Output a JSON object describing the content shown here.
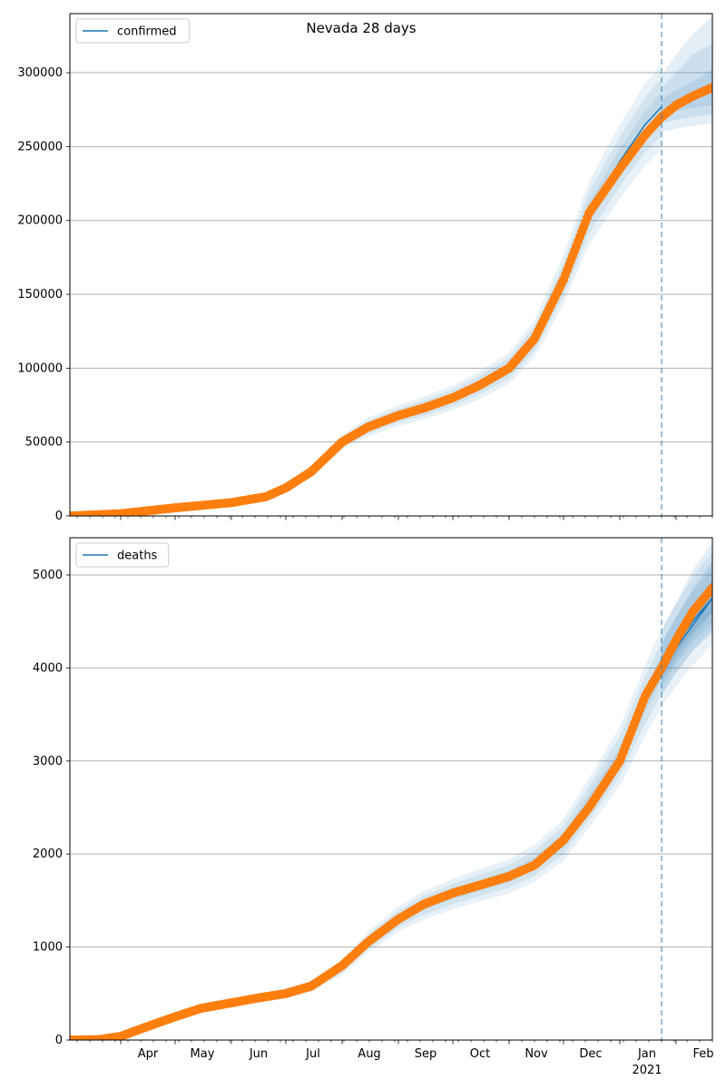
{
  "title": "Nevada 28 days",
  "xaxis": {
    "month_labels": [
      "Apr",
      "May",
      "Jun",
      "Jul",
      "Aug",
      "Sep",
      "Oct",
      "Nov",
      "Dec",
      "Jan",
      "Feb"
    ],
    "year_label": "2021",
    "range": [
      "2020-03-04",
      "2021-02-21"
    ],
    "forecast_start": "2021-01-24"
  },
  "colors": {
    "model_line": "#1f77b4",
    "observed_points": "#ff7f0e",
    "band": "#1f77b4",
    "forecast_marker": "#1f77b4",
    "grid": "#b0b0b0"
  },
  "chart_data": [
    {
      "type": "line",
      "name": "confirmed",
      "legend": "confirmed",
      "legend_position": "upper left",
      "grid": "horizontal",
      "ylim": [
        0,
        340000
      ],
      "yticks": [
        0,
        50000,
        100000,
        150000,
        200000,
        250000,
        300000
      ],
      "ytick_labels": [
        "0",
        "50000",
        "100000",
        "150000",
        "200000",
        "250000",
        "300000"
      ],
      "model_series": {
        "x": [
          "2020-03-04",
          "2020-04-01",
          "2020-05-01",
          "2020-06-01",
          "2020-06-20",
          "2020-07-01",
          "2020-07-15",
          "2020-08-01",
          "2020-08-15",
          "2020-09-01",
          "2020-09-15",
          "2020-10-01",
          "2020-10-15",
          "2020-11-01",
          "2020-11-15",
          "2020-12-01",
          "2020-12-15",
          "2021-01-01",
          "2021-01-15",
          "2021-01-24"
        ],
        "y": [
          0,
          1500,
          5500,
          9000,
          13000,
          19000,
          30000,
          50000,
          60000,
          68000,
          73000,
          80000,
          88000,
          100000,
          120000,
          160000,
          205000,
          240000,
          265000,
          277000
        ]
      },
      "observed": {
        "x": [
          "2020-03-04",
          "2020-04-01",
          "2020-05-01",
          "2020-06-01",
          "2020-06-20",
          "2020-07-01",
          "2020-07-15",
          "2020-08-01",
          "2020-08-15",
          "2020-09-01",
          "2020-09-15",
          "2020-10-01",
          "2020-10-15",
          "2020-11-01",
          "2020-11-15",
          "2020-12-01",
          "2020-12-15",
          "2021-01-01",
          "2021-01-15",
          "2021-01-24",
          "2021-02-01",
          "2021-02-10",
          "2021-02-21"
        ],
        "y": [
          0,
          1500,
          5500,
          9000,
          13000,
          19000,
          30000,
          50000,
          60000,
          68000,
          73000,
          80000,
          88000,
          100000,
          120000,
          160000,
          205000,
          235000,
          258000,
          270000,
          278000,
          284000,
          290000
        ]
      },
      "forecast": {
        "x": [
          "2021-01-24",
          "2021-02-01",
          "2021-02-10",
          "2021-02-21"
        ],
        "median": [
          277000,
          281000,
          285000,
          290000
        ],
        "bands": [
          {
            "lower": [
              272000,
              274000,
              276000,
              278000
            ],
            "upper": [
              282000,
              288000,
              294000,
              302000
            ]
          },
          {
            "lower": [
              266000,
              268000,
              270000,
              272000
            ],
            "upper": [
              290000,
              300000,
              312000,
              320000
            ]
          },
          {
            "lower": [
              260000,
              262000,
              264000,
              266000
            ],
            "upper": [
              298000,
              312000,
              326000,
              338000
            ]
          }
        ]
      }
    },
    {
      "type": "line",
      "name": "deaths",
      "legend": "deaths",
      "legend_position": "upper left",
      "grid": "horizontal",
      "ylim": [
        0,
        5400
      ],
      "yticks": [
        0,
        1000,
        2000,
        3000,
        4000,
        5000
      ],
      "ytick_labels": [
        "0",
        "1000",
        "2000",
        "3000",
        "4000",
        "5000"
      ],
      "model_series": {
        "x": [
          "2020-03-04",
          "2020-03-20",
          "2020-04-01",
          "2020-04-15",
          "2020-05-01",
          "2020-05-15",
          "2020-06-01",
          "2020-06-15",
          "2020-07-01",
          "2020-07-15",
          "2020-08-01",
          "2020-08-15",
          "2020-09-01",
          "2020-09-15",
          "2020-10-01",
          "2020-10-15",
          "2020-11-01",
          "2020-11-15",
          "2020-12-01",
          "2020-12-15",
          "2021-01-01",
          "2021-01-15",
          "2021-01-24",
          "2021-02-01",
          "2021-02-10",
          "2021-02-21"
        ],
        "y": [
          0,
          5,
          30,
          130,
          240,
          330,
          400,
          450,
          500,
          580,
          780,
          1050,
          1300,
          1450,
          1570,
          1660,
          1760,
          1900,
          2150,
          2550,
          3050,
          3650,
          4000,
          4250,
          4500,
          4750
        ]
      },
      "observed": {
        "x": [
          "2020-03-04",
          "2020-03-20",
          "2020-04-01",
          "2020-04-15",
          "2020-05-01",
          "2020-05-15",
          "2020-06-01",
          "2020-06-15",
          "2020-07-01",
          "2020-07-15",
          "2020-08-01",
          "2020-08-15",
          "2020-09-01",
          "2020-09-15",
          "2020-10-01",
          "2020-10-15",
          "2020-11-01",
          "2020-11-15",
          "2020-12-01",
          "2020-12-15",
          "2021-01-01",
          "2021-01-15",
          "2021-01-24",
          "2021-02-01",
          "2021-02-10",
          "2021-02-21"
        ],
        "y": [
          0,
          5,
          40,
          140,
          250,
          340,
          400,
          450,
          500,
          580,
          800,
          1050,
          1300,
          1460,
          1580,
          1660,
          1760,
          1880,
          2150,
          2500,
          3000,
          3700,
          4000,
          4300,
          4600,
          4860
        ]
      },
      "forecast": {
        "x": [
          "2021-01-24",
          "2021-02-01",
          "2021-02-10",
          "2021-02-21"
        ],
        "median": [
          4000,
          4250,
          4500,
          4750
        ],
        "bands": [
          {
            "lower": [
              3900,
              4150,
              4380,
              4600
            ],
            "upper": [
              4100,
              4380,
              4650,
              4950
            ]
          },
          {
            "lower": [
              3800,
              4050,
              4280,
              4480
            ],
            "upper": [
              4250,
              4550,
              4850,
              5150
            ]
          },
          {
            "lower": [
              3700,
              3950,
              4180,
              4380
            ],
            "upper": [
              4400,
              4700,
              5050,
              5350
            ]
          }
        ]
      }
    }
  ]
}
